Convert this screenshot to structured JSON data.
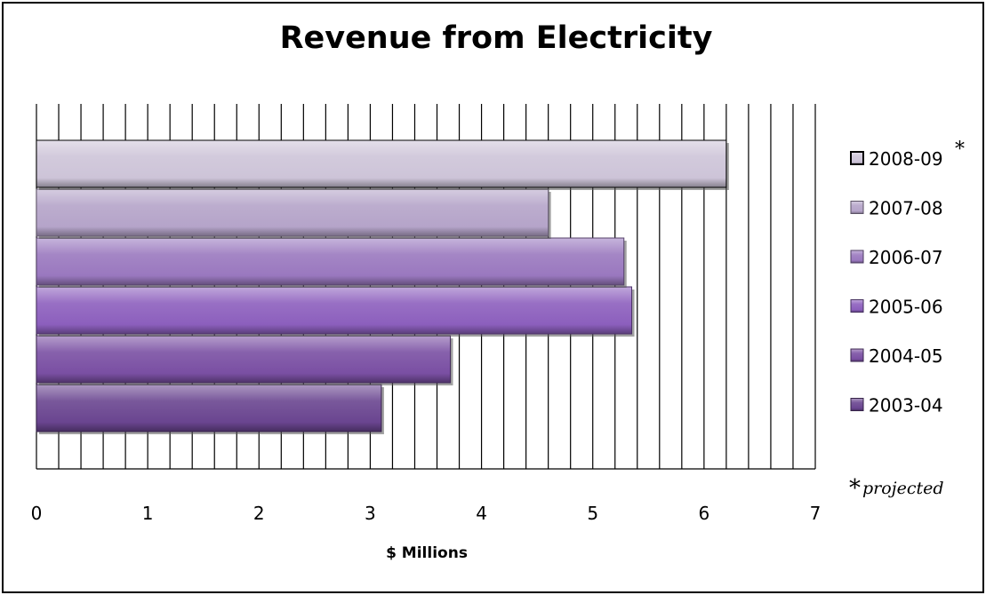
{
  "chart_data": {
    "type": "bar",
    "orientation": "horizontal",
    "title": "Revenue from Electricity",
    "xlabel": "$ Millions",
    "ylabel": "",
    "xlim": [
      0,
      7
    ],
    "xticks": [
      "0",
      "1",
      "2",
      "3",
      "4",
      "5",
      "6",
      "7"
    ],
    "grid": "vertical minor lines every 0.2",
    "legend_position": "right",
    "series": [
      {
        "name": "2003-04",
        "value": 3.1,
        "color": "#6a4590"
      },
      {
        "name": "2004-05",
        "value": 3.72,
        "color": "#7a4fa3"
      },
      {
        "name": "2005-06",
        "value": 5.35,
        "color": "#8c5fbd"
      },
      {
        "name": "2006-07",
        "value": 5.28,
        "color": "#9a78bf"
      },
      {
        "name": "2007-08",
        "value": 4.6,
        "color": "#b5a4c9"
      },
      {
        "name": "2008-09",
        "value": 6.2,
        "color": "#cdc4d8",
        "marker": "*"
      }
    ],
    "footnote": {
      "marker": "*",
      "text": "projected"
    }
  }
}
